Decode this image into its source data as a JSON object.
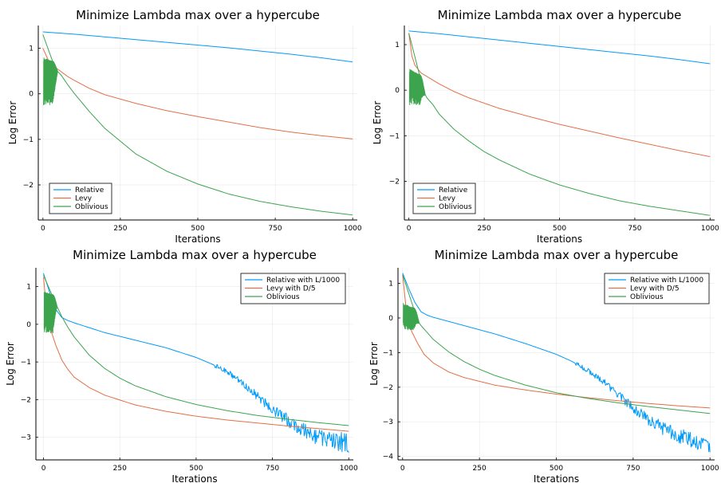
{
  "chart_data": [
    {
      "type": "line",
      "title": "Minimize Lambda max over a hypercube",
      "xlabel": "Iterations",
      "ylabel": "Log Error",
      "xlim": [
        -15,
        1015
      ],
      "ylim": [
        -2.77,
        1.5
      ],
      "xticks": [
        0,
        250,
        500,
        750,
        1000
      ],
      "yticks": [
        1,
        0,
        -1,
        -2
      ],
      "grid": true,
      "legend_position": "bottom-left",
      "series": [
        {
          "name": "Relative",
          "color": "#009AFA",
          "x": [
            0,
            100,
            200,
            300,
            400,
            500,
            600,
            700,
            800,
            900,
            1000
          ],
          "values": [
            1.36,
            1.31,
            1.25,
            1.19,
            1.13,
            1.07,
            1.01,
            0.94,
            0.87,
            0.79,
            0.7
          ]
        },
        {
          "name": "Levy",
          "color": "#E26F46",
          "x": [
            0,
            20,
            40,
            60,
            80,
            100,
            150,
            200,
            300,
            400,
            500,
            600,
            700,
            800,
            900,
            1000
          ],
          "values": [
            1.0,
            0.7,
            0.58,
            0.48,
            0.38,
            0.3,
            0.12,
            -0.02,
            -0.21,
            -0.37,
            -0.5,
            -0.62,
            -0.74,
            -0.84,
            -0.92,
            -0.99
          ]
        },
        {
          "name": "Oblivious",
          "color": "#3DA44E",
          "x": [
            0,
            40,
            60,
            80,
            100,
            150,
            200,
            250,
            300,
            400,
            500,
            600,
            700,
            800,
            900,
            1000
          ],
          "values": [
            1.3,
            0.55,
            0.4,
            0.2,
            0.02,
            -0.39,
            -0.76,
            -1.04,
            -1.32,
            -1.7,
            -1.98,
            -2.2,
            -2.36,
            -2.48,
            -2.58,
            -2.66
          ],
          "oscillation": {
            "x_start": 2,
            "x_end": 48,
            "low": -0.25,
            "high": 0.72
          }
        }
      ]
    },
    {
      "type": "line",
      "title": "Minimize Lambda max over a hypercube",
      "xlabel": "Iterations",
      "ylabel": "Log Error",
      "xlim": [
        -15,
        1015
      ],
      "ylim": [
        -2.85,
        1.42
      ],
      "xticks": [
        0,
        250,
        500,
        750,
        1000
      ],
      "yticks": [
        1,
        0,
        -1,
        -2
      ],
      "grid": true,
      "legend_position": "bottom-left",
      "series": [
        {
          "name": "Relative",
          "color": "#009AFA",
          "x": [
            0,
            100,
            200,
            300,
            400,
            500,
            600,
            700,
            800,
            900,
            1000
          ],
          "values": [
            1.3,
            1.24,
            1.17,
            1.1,
            1.03,
            0.96,
            0.89,
            0.82,
            0.75,
            0.67,
            0.58
          ]
        },
        {
          "name": "Levy",
          "color": "#E26F46",
          "x": [
            0,
            10,
            20,
            40,
            60,
            80,
            100,
            150,
            200,
            300,
            400,
            500,
            600,
            700,
            800,
            900,
            1000
          ],
          "values": [
            1.25,
            0.75,
            0.55,
            0.38,
            0.3,
            0.22,
            0.14,
            -0.03,
            -0.17,
            -0.4,
            -0.58,
            -0.75,
            -0.9,
            -1.05,
            -1.19,
            -1.33,
            -1.46
          ]
        },
        {
          "name": "Oblivious",
          "color": "#3DA44E",
          "x": [
            0,
            50,
            60,
            80,
            100,
            150,
            200,
            250,
            300,
            400,
            500,
            600,
            700,
            800,
            900,
            1000
          ],
          "values": [
            1.25,
            -0.05,
            -0.17,
            -0.32,
            -0.52,
            -0.86,
            -1.12,
            -1.35,
            -1.53,
            -1.84,
            -2.08,
            -2.27,
            -2.43,
            -2.55,
            -2.65,
            -2.75
          ],
          "oscillation": {
            "x_start": 2,
            "x_end": 55,
            "low": -0.33,
            "high": 0.35
          }
        }
      ]
    },
    {
      "type": "line",
      "title": "Minimize Lambda max over a hypercube",
      "xlabel": "Iterations",
      "ylabel": "Log Error",
      "xlim": [
        -25,
        1015
      ],
      "ylim": [
        -3.6,
        1.5
      ],
      "xticks": [
        0,
        250,
        500,
        750,
        1000
      ],
      "yticks": [
        1,
        0,
        -1,
        -2,
        -3
      ],
      "grid": true,
      "legend_position": "top-right",
      "series": [
        {
          "name": "Relative with L/1000",
          "color": "#009AFA",
          "x": [
            0,
            20,
            40,
            60,
            80,
            100,
            200,
            300,
            400,
            500,
            550,
            600,
            650,
            700,
            750,
            800,
            850,
            900,
            950,
            1000
          ],
          "values": [
            1.35,
            0.85,
            0.4,
            0.18,
            0.1,
            0.04,
            -0.22,
            -0.42,
            -0.62,
            -0.88,
            -1.05,
            -1.25,
            -1.55,
            -1.9,
            -2.25,
            -2.55,
            -2.8,
            -3.0,
            -3.1,
            -3.15
          ],
          "noise_start": 560
        },
        {
          "name": "Levy with D/5",
          "color": "#E26F46",
          "x": [
            0,
            10,
            25,
            40,
            60,
            80,
            100,
            150,
            200,
            300,
            400,
            500,
            600,
            700,
            800,
            900,
            1000
          ],
          "values": [
            1.25,
            0.35,
            -0.18,
            -0.55,
            -0.95,
            -1.2,
            -1.4,
            -1.68,
            -1.88,
            -2.14,
            -2.31,
            -2.44,
            -2.54,
            -2.62,
            -2.7,
            -2.77,
            -2.84
          ]
        },
        {
          "name": "Oblivious",
          "color": "#3DA44E",
          "x": [
            0,
            40,
            60,
            80,
            100,
            150,
            200,
            250,
            300,
            400,
            500,
            600,
            700,
            800,
            900,
            1000
          ],
          "values": [
            1.3,
            0.55,
            0.2,
            -0.08,
            -0.33,
            -0.82,
            -1.17,
            -1.43,
            -1.63,
            -1.92,
            -2.13,
            -2.29,
            -2.42,
            -2.52,
            -2.61,
            -2.69
          ],
          "oscillation": {
            "x_start": 2,
            "x_end": 45,
            "low": -0.25,
            "high": 0.8
          }
        }
      ]
    },
    {
      "type": "line",
      "title": "Minimize Lambda max over a hypercube",
      "xlabel": "Iterations",
      "ylabel": "Log Error",
      "xlim": [
        -15,
        1015
      ],
      "ylim": [
        -4.1,
        1.45
      ],
      "xticks": [
        0,
        250,
        500,
        750,
        1000
      ],
      "yticks": [
        1,
        0,
        -1,
        -2,
        -3,
        -4
      ],
      "grid": true,
      "legend_position": "top-right",
      "series": [
        {
          "name": "Relative with L/1000",
          "color": "#009AFA",
          "x": [
            0,
            20,
            40,
            60,
            80,
            100,
            200,
            300,
            400,
            500,
            550,
            600,
            650,
            700,
            750,
            800,
            850,
            900,
            950,
            1000
          ],
          "values": [
            1.3,
            0.85,
            0.45,
            0.18,
            0.08,
            0.02,
            -0.22,
            -0.46,
            -0.74,
            -1.05,
            -1.25,
            -1.5,
            -1.82,
            -2.2,
            -2.6,
            -2.95,
            -3.2,
            -3.4,
            -3.55,
            -3.65
          ],
          "noise_start": 560
        },
        {
          "name": "Levy with D/5",
          "color": "#E26F46",
          "x": [
            0,
            10,
            30,
            50,
            70,
            100,
            150,
            200,
            300,
            400,
            500,
            600,
            700,
            800,
            900,
            1000
          ],
          "values": [
            1.25,
            0.4,
            -0.4,
            -0.75,
            -1.05,
            -1.3,
            -1.56,
            -1.72,
            -1.94,
            -2.08,
            -2.2,
            -2.3,
            -2.39,
            -2.47,
            -2.54,
            -2.6
          ]
        },
        {
          "name": "Oblivious",
          "color": "#3DA44E",
          "x": [
            0,
            50,
            60,
            80,
            100,
            150,
            200,
            250,
            300,
            400,
            500,
            600,
            700,
            800,
            900,
            1000
          ],
          "values": [
            1.25,
            -0.1,
            -0.22,
            -0.42,
            -0.62,
            -0.98,
            -1.26,
            -1.48,
            -1.66,
            -1.94,
            -2.16,
            -2.32,
            -2.45,
            -2.56,
            -2.66,
            -2.76
          ],
          "oscillation": {
            "x_start": 2,
            "x_end": 55,
            "low": -0.35,
            "high": 0.3
          }
        }
      ]
    }
  ]
}
